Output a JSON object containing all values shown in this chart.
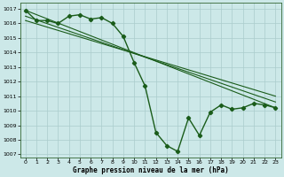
{
  "xlabel": "Graphe pression niveau de la mer (hPa)",
  "bg_color": "#cce8e8",
  "grid_color": "#aacccc",
  "line_color": "#1a5c1a",
  "ylim": [
    1006.8,
    1017.4
  ],
  "xlim": [
    -0.5,
    23.5
  ],
  "yticks": [
    1007,
    1008,
    1009,
    1010,
    1011,
    1012,
    1013,
    1014,
    1015,
    1016,
    1017
  ],
  "xticks": [
    0,
    1,
    2,
    3,
    4,
    5,
    6,
    7,
    8,
    9,
    10,
    11,
    12,
    13,
    14,
    15,
    16,
    17,
    18,
    19,
    20,
    21,
    22,
    23
  ],
  "main_series": {
    "x": [
      0,
      1,
      2,
      3,
      4,
      5,
      6,
      7,
      8,
      9,
      10,
      11,
      12,
      13,
      14,
      15,
      16,
      17,
      18,
      19,
      20,
      21,
      22,
      23
    ],
    "y": [
      1016.9,
      1016.2,
      1016.2,
      1016.0,
      1016.5,
      1016.6,
      1016.3,
      1016.4,
      1016.0,
      1015.1,
      1013.3,
      1011.7,
      1008.5,
      1007.6,
      1007.2,
      1009.5,
      1008.3,
      1009.9,
      1010.4,
      1010.1,
      1010.2,
      1010.5,
      1010.4,
      1010.2
    ]
  },
  "ref_lines": [
    {
      "x0": 0,
      "y0": 1016.9,
      "x1": 23,
      "y1": 1010.2
    },
    {
      "x0": 0,
      "y0": 1016.5,
      "x1": 23,
      "y1": 1010.6
    },
    {
      "x0": 0,
      "y0": 1016.2,
      "x1": 23,
      "y1": 1011.0
    }
  ]
}
